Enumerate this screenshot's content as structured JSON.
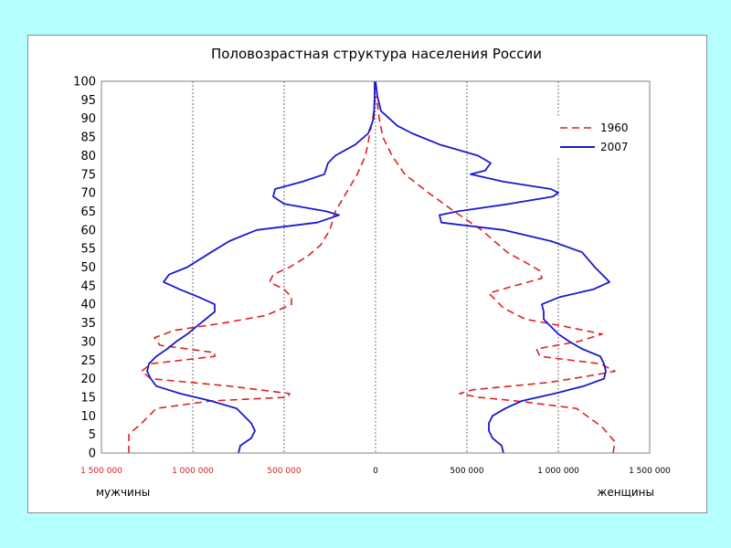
{
  "chart_data": {
    "type": "line",
    "title": "Половозрастная структура населения России",
    "orientation": "horizontal-pyramid",
    "y_axis": {
      "min": 0,
      "max": 100,
      "step": 5
    },
    "x_axis": {
      "min": -1500000,
      "max": 1500000
    },
    "x_ticks": [
      {
        "value": -1500000,
        "label": "1 500 000"
      },
      {
        "value": -1000000,
        "label": "1 000 000"
      },
      {
        "value": -500000,
        "label": "500 000"
      },
      {
        "value": 0,
        "label": "0"
      },
      {
        "value": 500000,
        "label": "500 000"
      },
      {
        "value": 1000000,
        "label": "1 000 000"
      },
      {
        "value": 1500000,
        "label": "1 500 000"
      }
    ],
    "y_ticks": [
      "0",
      "5",
      "10",
      "15",
      "20",
      "25",
      "30",
      "35",
      "40",
      "45",
      "50",
      "55",
      "60",
      "65",
      "70",
      "75",
      "80",
      "85",
      "90",
      "95",
      "100"
    ],
    "grid": true,
    "legend_position": "top-right",
    "left_label": "мужчины",
    "right_label": "женщины",
    "colors": {
      "s1960": "#dd2222",
      "s2007": "#1a1acc",
      "tick_red": "#cc2222"
    },
    "series": [
      {
        "name": "1960",
        "style": "dashed",
        "male": [
          [
            0,
            -1350000
          ],
          [
            5,
            -1350000
          ],
          [
            8,
            -1280000
          ],
          [
            12,
            -1200000
          ],
          [
            14,
            -900000
          ],
          [
            15,
            -480000
          ],
          [
            16,
            -470000
          ],
          [
            18,
            -800000
          ],
          [
            20,
            -1230000
          ],
          [
            22,
            -1280000
          ],
          [
            24,
            -1230000
          ],
          [
            26,
            -880000
          ],
          [
            27,
            -880000
          ],
          [
            29,
            -1180000
          ],
          [
            31,
            -1210000
          ],
          [
            33,
            -1100000
          ],
          [
            35,
            -830000
          ],
          [
            37,
            -600000
          ],
          [
            40,
            -460000
          ],
          [
            42,
            -460000
          ],
          [
            44,
            -500000
          ],
          [
            46,
            -580000
          ],
          [
            48,
            -560000
          ],
          [
            50,
            -470000
          ],
          [
            53,
            -370000
          ],
          [
            56,
            -300000
          ],
          [
            60,
            -250000
          ],
          [
            65,
            -220000
          ],
          [
            70,
            -160000
          ],
          [
            75,
            -100000
          ],
          [
            80,
            -55000
          ],
          [
            85,
            -35000
          ],
          [
            90,
            -15000
          ],
          [
            94,
            -5000
          ],
          [
            96,
            0
          ]
        ],
        "female": [
          [
            0,
            1300000
          ],
          [
            3,
            1310000
          ],
          [
            7,
            1240000
          ],
          [
            12,
            1100000
          ],
          [
            14,
            770000
          ],
          [
            15,
            560000
          ],
          [
            16,
            460000
          ],
          [
            17,
            530000
          ],
          [
            19,
            950000
          ],
          [
            21,
            1200000
          ],
          [
            22,
            1310000
          ],
          [
            24,
            1230000
          ],
          [
            26,
            900000
          ],
          [
            28,
            880000
          ],
          [
            30,
            1110000
          ],
          [
            32,
            1240000
          ],
          [
            34,
            1040000
          ],
          [
            36,
            820000
          ],
          [
            39,
            700000
          ],
          [
            41,
            660000
          ],
          [
            43,
            620000
          ],
          [
            45,
            760000
          ],
          [
            47,
            910000
          ],
          [
            49,
            900000
          ],
          [
            51,
            830000
          ],
          [
            54,
            720000
          ],
          [
            57,
            650000
          ],
          [
            60,
            580000
          ],
          [
            62,
            520000
          ],
          [
            65,
            430000
          ],
          [
            70,
            290000
          ],
          [
            75,
            160000
          ],
          [
            80,
            90000
          ],
          [
            85,
            40000
          ],
          [
            90,
            20000
          ],
          [
            94,
            10000
          ],
          [
            96,
            0
          ]
        ]
      },
      {
        "name": "2007",
        "style": "solid",
        "male": [
          [
            0,
            -750000
          ],
          [
            2,
            -740000
          ],
          [
            4,
            -680000
          ],
          [
            6,
            -660000
          ],
          [
            8,
            -680000
          ],
          [
            10,
            -720000
          ],
          [
            12,
            -760000
          ],
          [
            14,
            -900000
          ],
          [
            16,
            -1070000
          ],
          [
            18,
            -1200000
          ],
          [
            20,
            -1230000
          ],
          [
            22,
            -1250000
          ],
          [
            24,
            -1240000
          ],
          [
            26,
            -1200000
          ],
          [
            28,
            -1140000
          ],
          [
            30,
            -1090000
          ],
          [
            32,
            -1030000
          ],
          [
            34,
            -980000
          ],
          [
            36,
            -930000
          ],
          [
            38,
            -880000
          ],
          [
            40,
            -880000
          ],
          [
            42,
            -970000
          ],
          [
            44,
            -1070000
          ],
          [
            46,
            -1160000
          ],
          [
            48,
            -1130000
          ],
          [
            50,
            -1030000
          ],
          [
            54,
            -900000
          ],
          [
            57,
            -800000
          ],
          [
            60,
            -650000
          ],
          [
            62,
            -320000
          ],
          [
            64,
            -200000
          ],
          [
            65,
            -270000
          ],
          [
            67,
            -500000
          ],
          [
            69,
            -560000
          ],
          [
            71,
            -550000
          ],
          [
            73,
            -400000
          ],
          [
            75,
            -280000
          ],
          [
            78,
            -260000
          ],
          [
            80,
            -220000
          ],
          [
            83,
            -110000
          ],
          [
            86,
            -40000
          ],
          [
            90,
            -10000
          ],
          [
            96,
            -5000
          ],
          [
            100,
            -5000
          ]
        ],
        "female": [
          [
            0,
            700000
          ],
          [
            2,
            690000
          ],
          [
            4,
            640000
          ],
          [
            6,
            620000
          ],
          [
            8,
            620000
          ],
          [
            10,
            640000
          ],
          [
            12,
            710000
          ],
          [
            14,
            800000
          ],
          [
            16,
            980000
          ],
          [
            18,
            1140000
          ],
          [
            20,
            1250000
          ],
          [
            22,
            1260000
          ],
          [
            24,
            1250000
          ],
          [
            26,
            1230000
          ],
          [
            28,
            1130000
          ],
          [
            30,
            1060000
          ],
          [
            32,
            1000000
          ],
          [
            34,
            960000
          ],
          [
            36,
            920000
          ],
          [
            38,
            920000
          ],
          [
            40,
            910000
          ],
          [
            42,
            1010000
          ],
          [
            44,
            1190000
          ],
          [
            46,
            1280000
          ],
          [
            48,
            1240000
          ],
          [
            50,
            1200000
          ],
          [
            54,
            1130000
          ],
          [
            57,
            960000
          ],
          [
            60,
            700000
          ],
          [
            62,
            360000
          ],
          [
            64,
            350000
          ],
          [
            65,
            450000
          ],
          [
            67,
            730000
          ],
          [
            69,
            970000
          ],
          [
            70,
            1000000
          ],
          [
            71,
            960000
          ],
          [
            73,
            700000
          ],
          [
            75,
            520000
          ],
          [
            76,
            600000
          ],
          [
            78,
            630000
          ],
          [
            80,
            560000
          ],
          [
            83,
            350000
          ],
          [
            86,
            200000
          ],
          [
            88,
            120000
          ],
          [
            92,
            30000
          ],
          [
            96,
            10000
          ],
          [
            100,
            0
          ]
        ]
      }
    ]
  }
}
